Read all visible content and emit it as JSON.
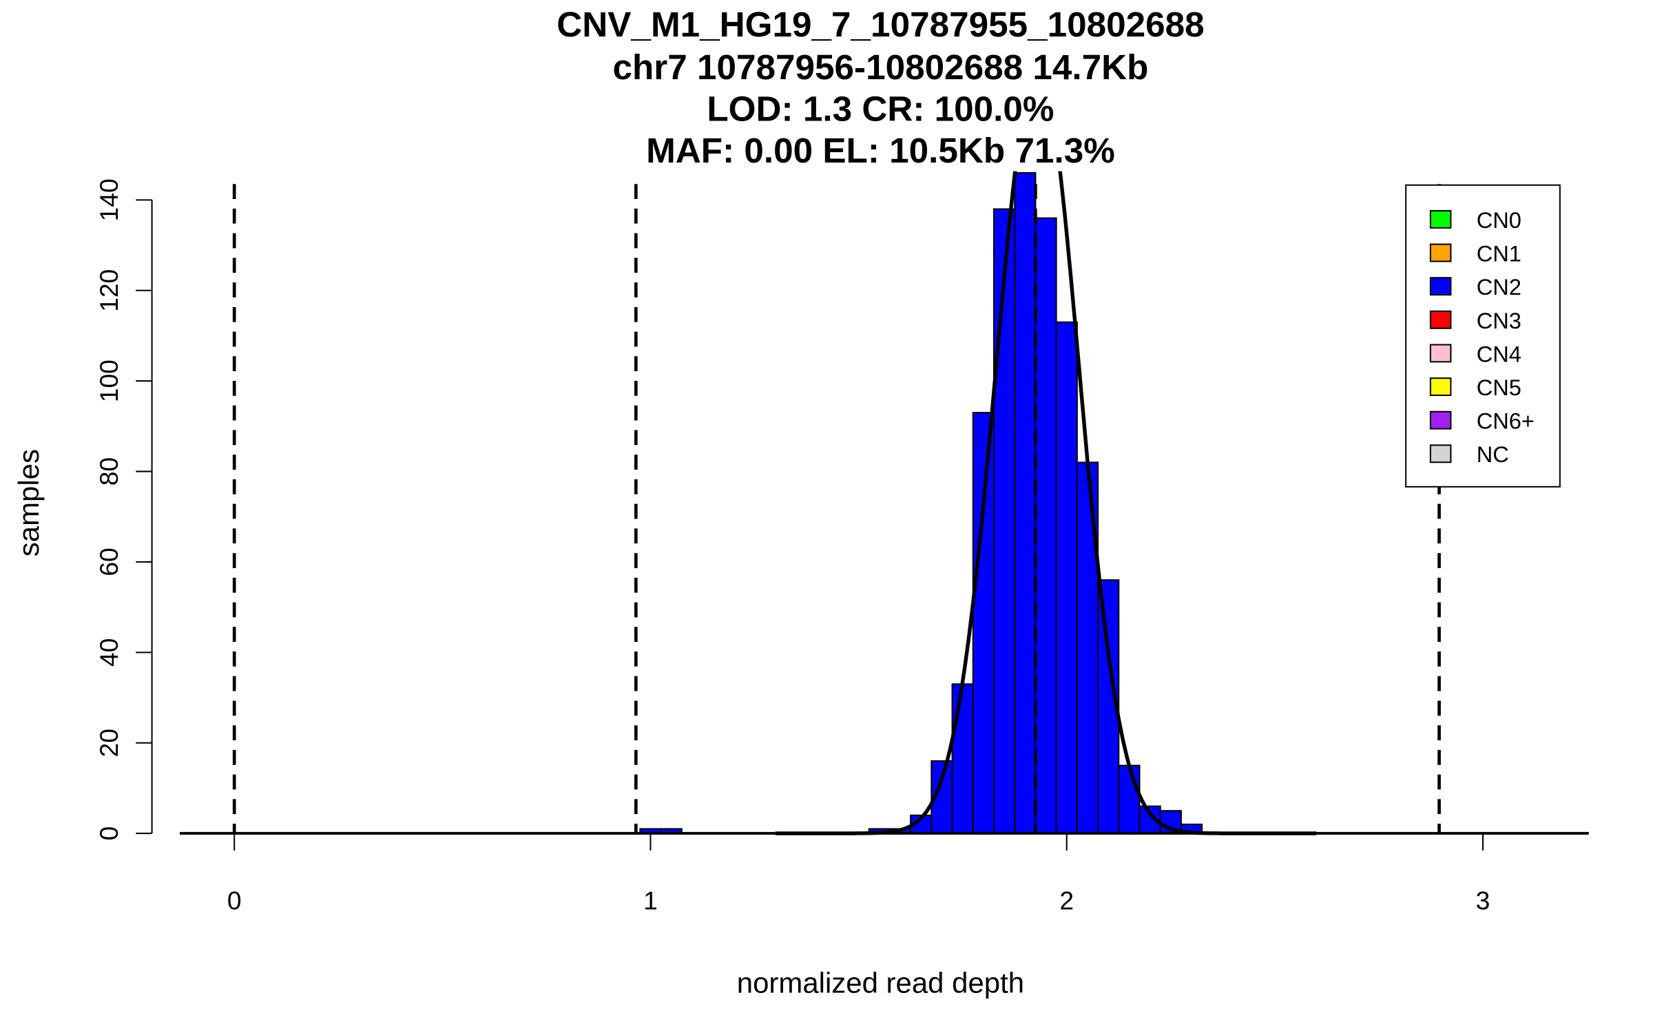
{
  "chart_data": {
    "type": "bar",
    "title_lines": [
      "CNV_M1_HG19_7_10787955_10802688",
      "chr7 10787956-10802688 14.7Kb",
      "LOD: 1.3 CR: 100.0%",
      "MAF: 0.00 EL: 10.5Kb 71.3%"
    ],
    "xlabel": "normalized read depth",
    "ylabel": "samples",
    "xlim": [
      -0.13,
      3.25
    ],
    "ylim": [
      0,
      140
    ],
    "xticks": [
      "0",
      "1",
      "2",
      "3"
    ],
    "yticks": [
      "0",
      "20",
      "40",
      "60",
      "80",
      "100",
      "120",
      "140"
    ],
    "bin_width": 0.05,
    "bins": [
      {
        "start": 0.975,
        "count": 1
      },
      {
        "start": 1.025,
        "count": 1
      },
      {
        "start": 1.525,
        "count": 1
      },
      {
        "start": 1.575,
        "count": 1
      },
      {
        "start": 1.625,
        "count": 4
      },
      {
        "start": 1.675,
        "count": 16
      },
      {
        "start": 1.725,
        "count": 33
      },
      {
        "start": 1.775,
        "count": 93
      },
      {
        "start": 1.825,
        "count": 138
      },
      {
        "start": 1.875,
        "count": 146
      },
      {
        "start": 1.925,
        "count": 136
      },
      {
        "start": 1.975,
        "count": 113
      },
      {
        "start": 2.025,
        "count": 82
      },
      {
        "start": 2.075,
        "count": 56
      },
      {
        "start": 2.125,
        "count": 15
      },
      {
        "start": 2.175,
        "count": 6
      },
      {
        "start": 2.225,
        "count": 5
      },
      {
        "start": 2.275,
        "count": 2
      }
    ],
    "bar_color": "#0000FF",
    "fit_curve": {
      "mean": 1.93,
      "sd": 0.1,
      "n": 849
    },
    "cn_thresholds": [
      0.0,
      0.965,
      1.925,
      2.895
    ],
    "legend": {
      "placement": "top-right",
      "entries": [
        {
          "label": "CN0",
          "color": "#00FF00"
        },
        {
          "label": "CN1",
          "color": "#FFA500"
        },
        {
          "label": "CN2",
          "color": "#0000FF"
        },
        {
          "label": "CN3",
          "color": "#FF0000"
        },
        {
          "label": "CN4",
          "color": "#FFC0CB"
        },
        {
          "label": "CN5",
          "color": "#FFFF00"
        },
        {
          "label": "CN6+",
          "color": "#A020F0"
        },
        {
          "label": "NC",
          "color": "#D3D3D3"
        }
      ]
    }
  }
}
